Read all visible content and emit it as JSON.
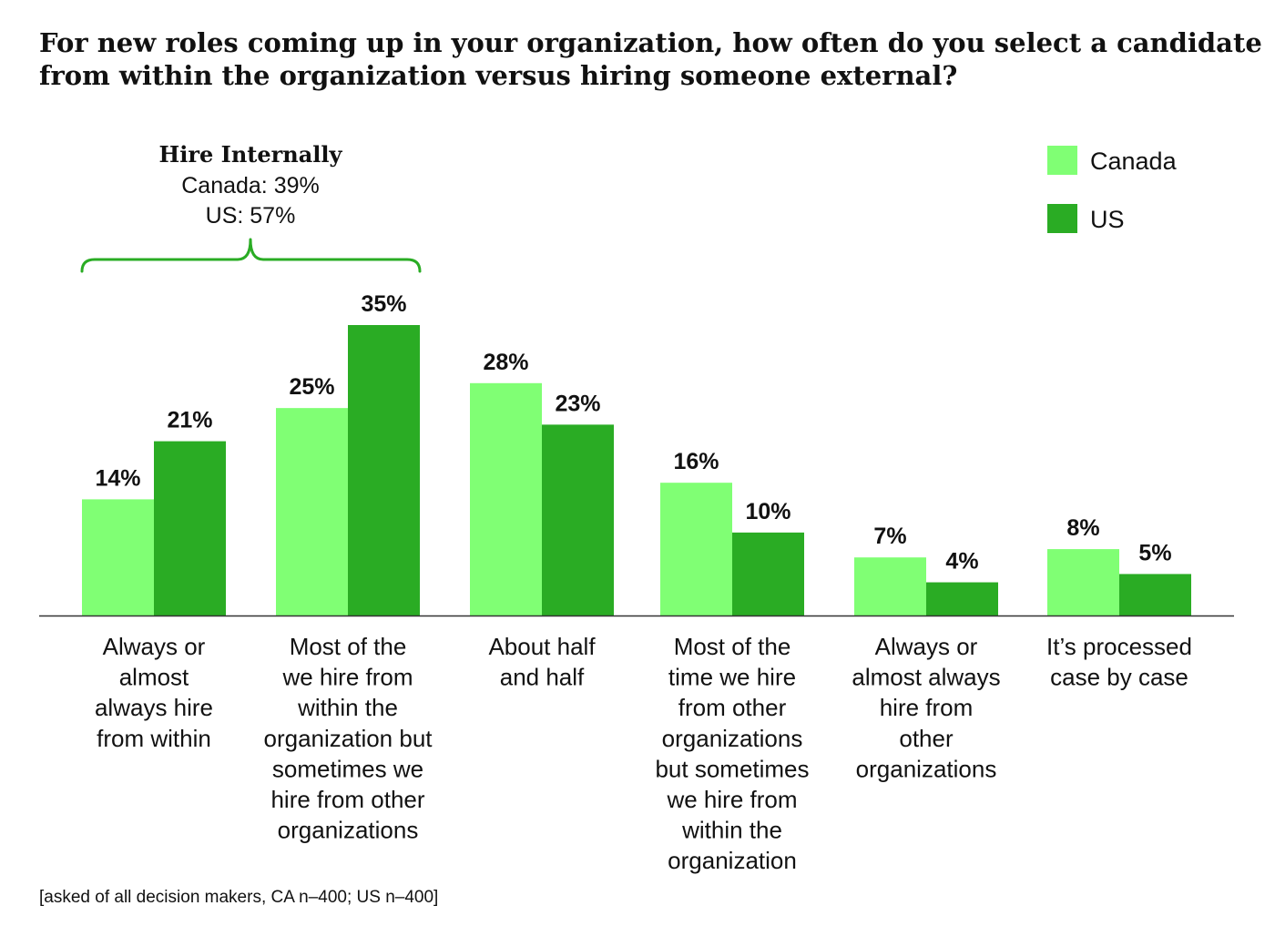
{
  "chart_data": {
    "type": "bar",
    "title": "For new roles coming up in your organization, how often do you select a candidate from within the organization versus hiring someone external?",
    "title_lines": [
      "For new roles coming up in your organization, how often do you select a candidate",
      "from within the organization versus hiring someone external?"
    ],
    "categories": [
      "Always or almost always hire from within",
      "Most of the we hire from within the organization but sometimes we hire from other organizations",
      "About half and half",
      "Most of the time we hire from other organizations but sometimes we hire from within the organization",
      "Always or almost always hire from other organizations",
      "It’s processed case by case"
    ],
    "category_lines": [
      [
        "Always or",
        "almost",
        "always hire",
        "from within"
      ],
      [
        "Most of the",
        "we hire from",
        "within the",
        "organization but",
        "sometimes we",
        "hire from other",
        "organizations"
      ],
      [
        "About half",
        "and half"
      ],
      [
        "Most of the",
        "time we hire",
        "from other",
        "organizations",
        "but sometimes",
        "we hire from",
        "within the",
        "organization"
      ],
      [
        "Always or",
        "almost always",
        "hire from",
        "other",
        "organizations"
      ],
      [
        "It’s processed",
        "case by case"
      ]
    ],
    "series": [
      {
        "name": "Canada",
        "color": "#80ff74",
        "values": [
          14,
          25,
          28,
          16,
          7,
          8
        ],
        "labels": [
          "14%",
          "25%",
          "28%",
          "16%",
          "7%",
          "8%"
        ]
      },
      {
        "name": "US",
        "color": "#2aac24",
        "values": [
          21,
          35,
          23,
          10,
          4,
          5
        ],
        "labels": [
          "21%",
          "35%",
          "23%",
          "10%",
          "4%",
          "5%"
        ]
      }
    ],
    "ylim": [
      0,
      35
    ],
    "xlabel": "",
    "ylabel": "",
    "grid": false,
    "legend_position": "top-right",
    "annotation": {
      "title": "Hire Internally",
      "lines": [
        "Canada: 39%",
        "US: 57%"
      ],
      "bracket_color": "#2aac24",
      "spans_categories": [
        0,
        1
      ]
    },
    "footnote": "[asked of all decision makers, CA n–400; US n–400]"
  }
}
